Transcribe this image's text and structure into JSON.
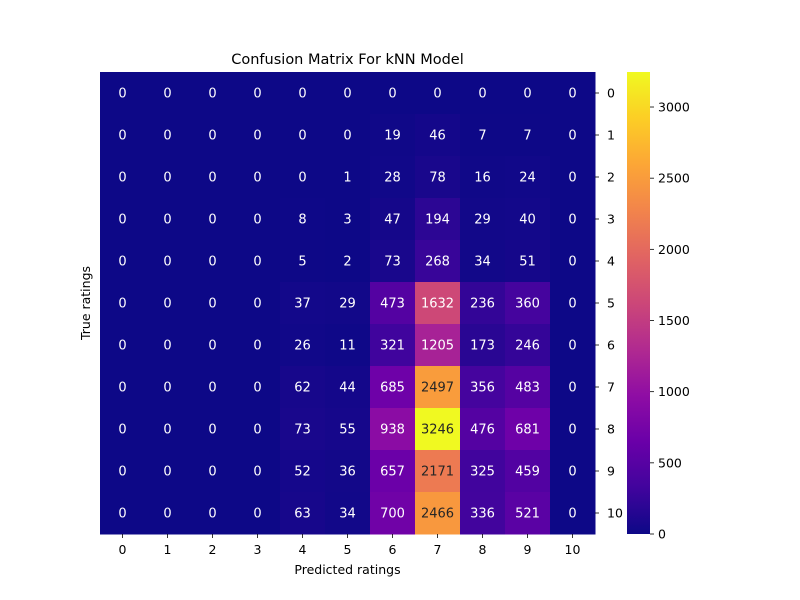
{
  "chart_data": {
    "type": "heatmap",
    "title": "Confusion Matrix For kNN Model",
    "xlabel": "Predicted ratings",
    "ylabel": "True ratings",
    "x_categories": [
      "0",
      "1",
      "2",
      "3",
      "4",
      "5",
      "6",
      "7",
      "8",
      "9",
      "10"
    ],
    "y_categories": [
      "0",
      "1",
      "2",
      "3",
      "4",
      "5",
      "6",
      "7",
      "8",
      "9",
      "10"
    ],
    "values": [
      [
        0,
        0,
        0,
        0,
        0,
        0,
        0,
        0,
        0,
        0,
        0
      ],
      [
        0,
        0,
        0,
        0,
        0,
        0,
        19,
        46,
        7,
        7,
        0
      ],
      [
        0,
        0,
        0,
        0,
        0,
        1,
        28,
        78,
        16,
        24,
        0
      ],
      [
        0,
        0,
        0,
        0,
        8,
        3,
        47,
        194,
        29,
        40,
        0
      ],
      [
        0,
        0,
        0,
        0,
        5,
        2,
        73,
        268,
        34,
        51,
        0
      ],
      [
        0,
        0,
        0,
        0,
        37,
        29,
        473,
        1632,
        236,
        360,
        0
      ],
      [
        0,
        0,
        0,
        0,
        26,
        11,
        321,
        1205,
        173,
        246,
        0
      ],
      [
        0,
        0,
        0,
        0,
        62,
        44,
        685,
        2497,
        356,
        483,
        0
      ],
      [
        0,
        0,
        0,
        0,
        73,
        55,
        938,
        3246,
        476,
        681,
        0
      ],
      [
        0,
        0,
        0,
        0,
        52,
        36,
        657,
        2171,
        325,
        459,
        0
      ],
      [
        0,
        0,
        0,
        0,
        63,
        34,
        700,
        2466,
        336,
        521,
        0
      ]
    ],
    "colormap": "plasma",
    "colorbar": {
      "min": 0,
      "max": 3246,
      "ticks": [
        0,
        500,
        1000,
        1500,
        2000,
        2500,
        3000
      ]
    }
  }
}
